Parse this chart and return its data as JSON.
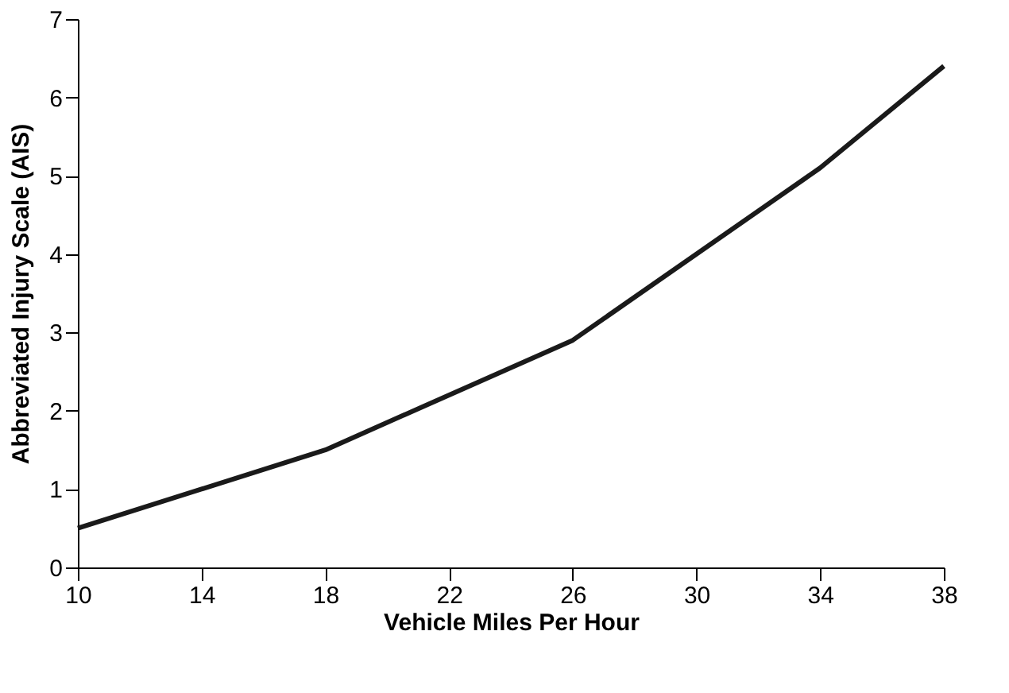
{
  "chart_data": {
    "type": "line",
    "xlabel": "Vehicle Miles Per Hour",
    "ylabel": "Abbreviated Injury Scale (AIS)",
    "x": [
      10,
      18,
      26,
      34,
      38
    ],
    "series": [
      {
        "color": "#1a1a1a",
        "values": [
          0.5,
          1.5,
          2.9,
          5.1,
          6.4
        ]
      }
    ],
    "xlim": [
      10,
      38
    ],
    "xticks": [
      10,
      14,
      18,
      22,
      26,
      30,
      34,
      38
    ],
    "ylim": [
      0,
      7
    ],
    "yticks": [
      0,
      1,
      2,
      3,
      4,
      5,
      6,
      7
    ],
    "grid": false,
    "legend": false,
    "marker": "none",
    "line_style": "solid"
  }
}
